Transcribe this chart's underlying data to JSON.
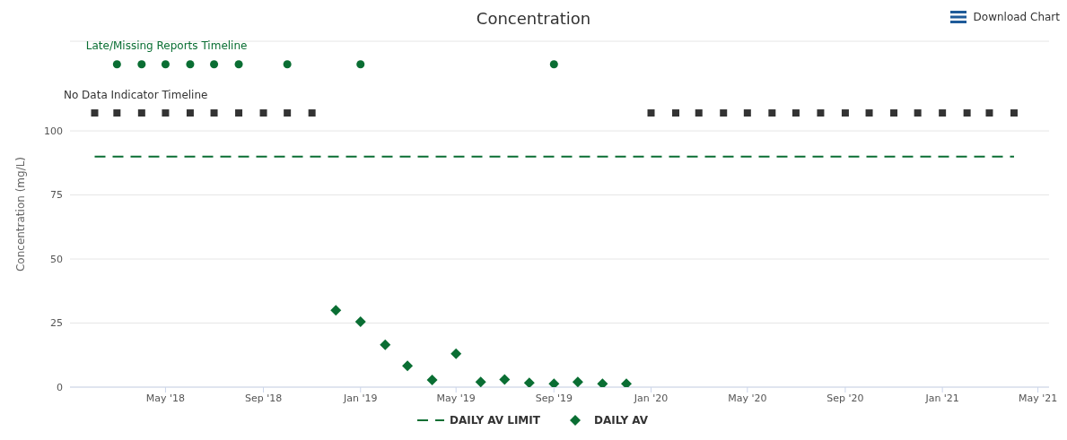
{
  "chart_data": {
    "type": "scatter",
    "title": "Concentration",
    "ylabel": "Concentration (mg/L)",
    "annotations": [
      "Download Chart"
    ],
    "xlim": [
      "2018-01-01",
      "2021-05-15"
    ],
    "xticks": [
      {
        "value": "2018-05-01",
        "label": "May '18"
      },
      {
        "value": "2018-09-01",
        "label": "Sep '18"
      },
      {
        "value": "2019-01-01",
        "label": "Jan '19"
      },
      {
        "value": "2019-05-01",
        "label": "May '19"
      },
      {
        "value": "2019-09-01",
        "label": "Sep '19"
      },
      {
        "value": "2020-01-01",
        "label": "Jan '20"
      },
      {
        "value": "2020-05-01",
        "label": "May '20"
      },
      {
        "value": "2020-09-01",
        "label": "Sep '20"
      },
      {
        "value": "2021-01-01",
        "label": "Jan '21"
      },
      {
        "value": "2021-05-01",
        "label": "May '21"
      }
    ],
    "ylim": [
      0,
      135
    ],
    "yticks": [
      0,
      25,
      50,
      75,
      100
    ],
    "grid": "y",
    "legend": "bottom",
    "series": [
      {
        "name": "Late/Missing Reports Timeline",
        "marker": "circle",
        "color": "#0a6e33",
        "x": [
          "2018-03-01",
          "2018-04-01",
          "2018-05-01",
          "2018-06-01",
          "2018-07-01",
          "2018-08-01",
          "2018-10-01",
          "2019-01-01",
          "2019-09-01"
        ],
        "values": [
          126,
          126,
          126,
          126,
          126,
          126,
          126,
          126,
          126
        ]
      },
      {
        "name": "No Data Indicator Timeline",
        "marker": "square",
        "color": "#333333",
        "x": [
          "2018-02-01",
          "2018-03-01",
          "2018-04-01",
          "2018-05-01",
          "2018-06-01",
          "2018-07-01",
          "2018-08-01",
          "2018-09-01",
          "2018-10-01",
          "2018-11-01",
          "2020-01-01",
          "2020-02-01",
          "2020-03-01",
          "2020-04-01",
          "2020-05-01",
          "2020-06-01",
          "2020-07-01",
          "2020-08-01",
          "2020-09-01",
          "2020-10-01",
          "2020-11-01",
          "2020-12-01",
          "2021-01-01",
          "2021-02-01",
          "2021-03-01",
          "2021-04-01"
        ],
        "values": [
          107,
          107,
          107,
          107,
          107,
          107,
          107,
          107,
          107,
          107,
          107,
          107,
          107,
          107,
          107,
          107,
          107,
          107,
          107,
          107,
          107,
          107,
          107,
          107,
          107,
          107
        ]
      },
      {
        "name": "DAILY AV LIMIT",
        "type": "line",
        "line_style": "dashed",
        "marker": "none",
        "color": "#0a6e33",
        "x": [
          "2018-02-01",
          "2021-04-01"
        ],
        "values": [
          90,
          90
        ]
      },
      {
        "name": "DAILY AV",
        "marker": "diamond",
        "color": "#0a6e33",
        "x": [
          "2018-12-01",
          "2019-01-01",
          "2019-02-01",
          "2019-03-01",
          "2019-04-01",
          "2019-05-01",
          "2019-06-01",
          "2019-07-01",
          "2019-08-01",
          "2019-09-01",
          "2019-10-01",
          "2019-11-01",
          "2019-12-01"
        ],
        "values": [
          30,
          25.5,
          16.5,
          8.3,
          2.8,
          13,
          2,
          3,
          1.7,
          1.3,
          2,
          1.3,
          1.3
        ]
      }
    ]
  }
}
